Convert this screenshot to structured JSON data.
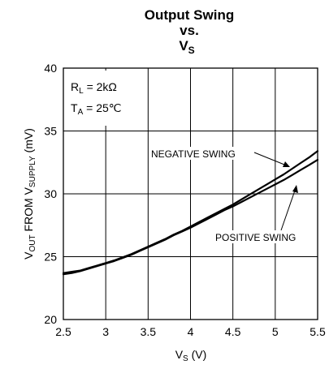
{
  "chart_data": {
    "type": "line",
    "title": {
      "line1": "Output Swing",
      "line2": "vs.",
      "line3_main": "V",
      "line3_sub": "S"
    },
    "xlabel": {
      "main": "V",
      "sub": "S",
      "unit": " (V)"
    },
    "ylabel": {
      "p1": "V",
      "p1_sub": "OUT",
      "p2": " FROM V",
      "p2_sub": "SUPPLY",
      "unit": " (mV)"
    },
    "xlim": [
      2.5,
      5.5
    ],
    "ylim": [
      20,
      40
    ],
    "xticks": [
      "2.5",
      "3",
      "3.5",
      "4",
      "4.5",
      "5",
      "5.5"
    ],
    "yticks": [
      "20",
      "25",
      "30",
      "35",
      "40"
    ],
    "grid": true,
    "conditions": {
      "rl_main": "R",
      "rl_sub": "L",
      "rl_value": " = 2kΩ",
      "ta_main": "T",
      "ta_sub": "A",
      "ta_value": " = 25℃"
    },
    "series": [
      {
        "name": "NEGATIVE SWING",
        "x": [
          2.5,
          2.6,
          2.7,
          2.8,
          2.9,
          3.0,
          3.1,
          3.2,
          3.3,
          3.4,
          3.5,
          3.6,
          3.7,
          3.8,
          3.9,
          4.0,
          4.1,
          4.2,
          4.3,
          4.4,
          4.5,
          4.6,
          4.7,
          4.8,
          4.9,
          5.0,
          5.1,
          5.2,
          5.3,
          5.4,
          5.5
        ],
        "values": [
          23.7,
          23.8,
          23.9,
          24.1,
          24.3,
          24.5,
          24.7,
          24.95,
          25.2,
          25.5,
          25.8,
          26.1,
          26.4,
          26.75,
          27.05,
          27.4,
          27.75,
          28.1,
          28.45,
          28.8,
          29.15,
          29.55,
          29.95,
          30.35,
          30.75,
          31.15,
          31.55,
          32.0,
          32.45,
          32.9,
          33.4
        ]
      },
      {
        "name": "POSITIVE SWING",
        "x": [
          2.5,
          2.6,
          2.7,
          2.8,
          2.9,
          3.0,
          3.1,
          3.2,
          3.3,
          3.4,
          3.5,
          3.6,
          3.7,
          3.8,
          3.9,
          4.0,
          4.1,
          4.2,
          4.3,
          4.4,
          4.5,
          4.6,
          4.7,
          4.8,
          4.9,
          5.0,
          5.1,
          5.2,
          5.3,
          5.4,
          5.5
        ],
        "values": [
          23.6,
          23.7,
          23.85,
          24.05,
          24.25,
          24.45,
          24.65,
          24.9,
          25.15,
          25.45,
          25.75,
          26.05,
          26.35,
          26.7,
          27.0,
          27.3,
          27.65,
          28.0,
          28.35,
          28.7,
          29.0,
          29.35,
          29.7,
          30.05,
          30.4,
          30.75,
          31.1,
          31.5,
          31.9,
          32.3,
          32.7
        ]
      }
    ],
    "annotations": [
      {
        "text": "NEGATIVE SWING",
        "series": "NEGATIVE SWING"
      },
      {
        "text": "POSITIVE SWING",
        "series": "POSITIVE SWING"
      }
    ]
  }
}
